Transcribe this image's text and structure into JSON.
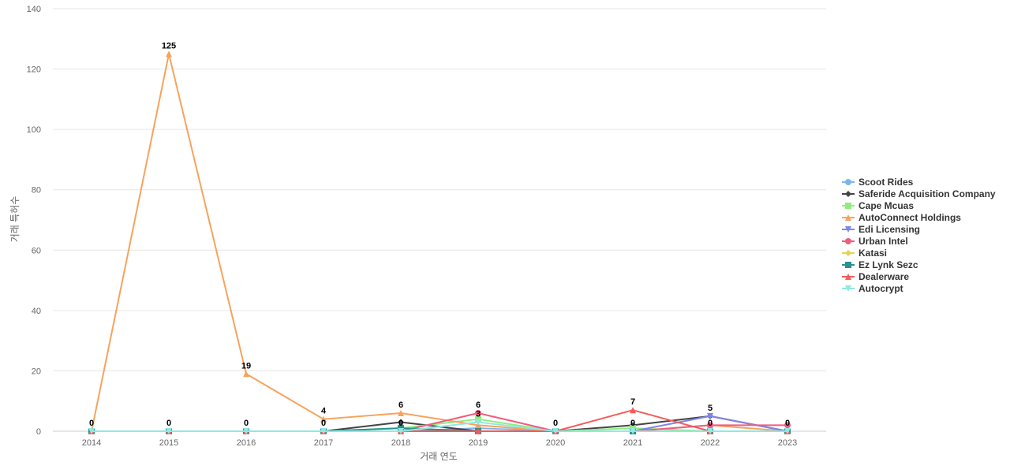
{
  "chart_data": {
    "type": "line",
    "title": "",
    "xlabel": "거래 연도",
    "ylabel": "거래 특허수",
    "ylim": [
      0,
      140
    ],
    "yticks": [
      0,
      20,
      40,
      60,
      80,
      100,
      120,
      140
    ],
    "grid": true,
    "legend_position": "right",
    "categories": [
      "2014",
      "2015",
      "2016",
      "2017",
      "2018",
      "2019",
      "2020",
      "2021",
      "2022",
      "2023"
    ],
    "series": [
      {
        "name": "Scoot Rides",
        "color": "#7cb5ec",
        "marker": "circle",
        "values": [
          0,
          0,
          0,
          0,
          0,
          1,
          0,
          0,
          0,
          0
        ]
      },
      {
        "name": "Saferide Acquisition Company",
        "color": "#434348",
        "marker": "diamond",
        "values": [
          0,
          0,
          0,
          0,
          3,
          0,
          0,
          2,
          5,
          0
        ]
      },
      {
        "name": "Cape Mcuas",
        "color": "#90ed7d",
        "marker": "square",
        "values": [
          0,
          0,
          0,
          0,
          1,
          4,
          0,
          1,
          0,
          0
        ]
      },
      {
        "name": "AutoConnect Holdings",
        "color": "#f7a35c",
        "marker": "triangle",
        "values": [
          0,
          125,
          19,
          4,
          6,
          2,
          0,
          0,
          2,
          0
        ]
      },
      {
        "name": "Edi Licensing",
        "color": "#8085e9",
        "marker": "triangle-down",
        "values": [
          0,
          0,
          0,
          0,
          0,
          0,
          0,
          0,
          5,
          0
        ]
      },
      {
        "name": "Urban Intel",
        "color": "#f15c80",
        "marker": "circle",
        "values": [
          0,
          0,
          0,
          0,
          0,
          6,
          0,
          0,
          2,
          2
        ]
      },
      {
        "name": "Katasi",
        "color": "#e4d354",
        "marker": "diamond",
        "values": [
          0,
          0,
          0,
          0,
          0,
          0,
          0,
          0,
          0,
          0
        ]
      },
      {
        "name": "Ez Lynk Sezc",
        "color": "#2b908f",
        "marker": "square",
        "values": [
          0,
          0,
          0,
          0,
          1,
          0,
          0,
          0,
          0,
          0
        ]
      },
      {
        "name": "Dealerware",
        "color": "#f45b5b",
        "marker": "triangle",
        "values": [
          0,
          0,
          0,
          0,
          0,
          0,
          0,
          7,
          0,
          0
        ]
      },
      {
        "name": "Autocrypt",
        "color": "#91e8e1",
        "marker": "triangle-down",
        "values": [
          0,
          0,
          0,
          0,
          0,
          3,
          0,
          0,
          0,
          0
        ]
      }
    ],
    "data_labels": [
      {
        "category": "2014",
        "value": 0,
        "text": "0"
      },
      {
        "category": "2015",
        "value": 125,
        "text": "125"
      },
      {
        "category": "2015",
        "value": 0,
        "text": "0"
      },
      {
        "category": "2016",
        "value": 19,
        "text": "19"
      },
      {
        "category": "2016",
        "value": 0,
        "text": "0"
      },
      {
        "category": "2017",
        "value": 4,
        "text": "4"
      },
      {
        "category": "2017",
        "value": 0,
        "text": "0"
      },
      {
        "category": "2018",
        "value": 6,
        "text": "6"
      },
      {
        "category": "2018",
        "value": 0,
        "text": "0"
      },
      {
        "category": "2019",
        "value": 6,
        "text": "6"
      },
      {
        "category": "2019",
        "value": 3,
        "text": "3"
      },
      {
        "category": "2020",
        "value": 0,
        "text": "0"
      },
      {
        "category": "2021",
        "value": 7,
        "text": "7"
      },
      {
        "category": "2021",
        "value": 0,
        "text": "0"
      },
      {
        "category": "2022",
        "value": 5,
        "text": "5"
      },
      {
        "category": "2022",
        "value": 0,
        "text": "0"
      },
      {
        "category": "2023",
        "value": 0,
        "text": "0"
      }
    ]
  }
}
